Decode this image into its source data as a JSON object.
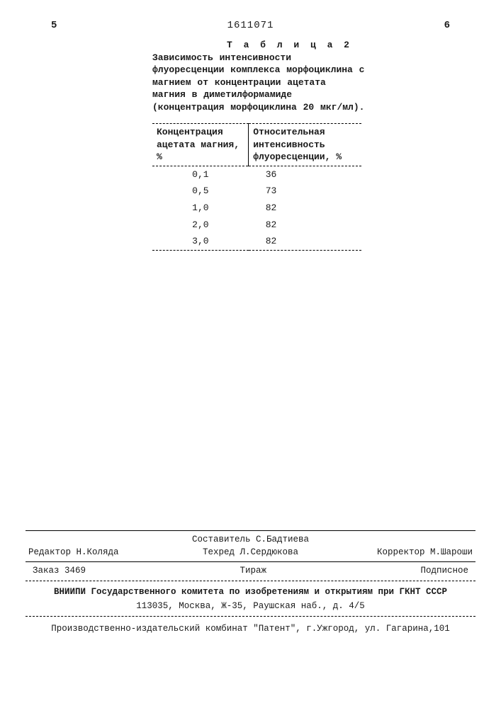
{
  "header": {
    "page_left": "5",
    "doc_number": "1611071",
    "page_right": "6"
  },
  "table": {
    "label": "Т а б л и ц а  2",
    "caption": "Зависимость интенсивности флуоресценции комплекса морфоциклина с магнием от концентрации ацетата магния в диметилформамиде (концентрация морфоциклина 20 мкг/мл).",
    "columns": {
      "c1": "Концентрация ацетата магния, %",
      "c2": "Относительная интенсивность флуоресценции, %"
    },
    "rows": [
      {
        "c1": "0,1",
        "c2": "36"
      },
      {
        "c1": "0,5",
        "c2": "73"
      },
      {
        "c1": "1,0",
        "c2": "82"
      },
      {
        "c1": "2,0",
        "c2": "82"
      },
      {
        "c1": "3,0",
        "c2": "82"
      }
    ]
  },
  "footer": {
    "compiler": "Составитель С.Бадтиева",
    "editor": "Редактор Н.Коляда",
    "techred": "Техред Л.Сердюкова",
    "corrector": "Корректор М.Шароши",
    "order": "Заказ 3469",
    "circulation": "Тираж",
    "subscription": "Подписное",
    "vniipi": "ВНИИПИ Государственного комитета по изобретениям и открытиям при ГКНТ СССР",
    "vniipi_addr": "113035, Москва, Ж-35, Раушская наб., д. 4/5",
    "producer": "Производственно-издательский комбинат \"Патент\", г.Ужгород, ул. Гагарина,101"
  }
}
